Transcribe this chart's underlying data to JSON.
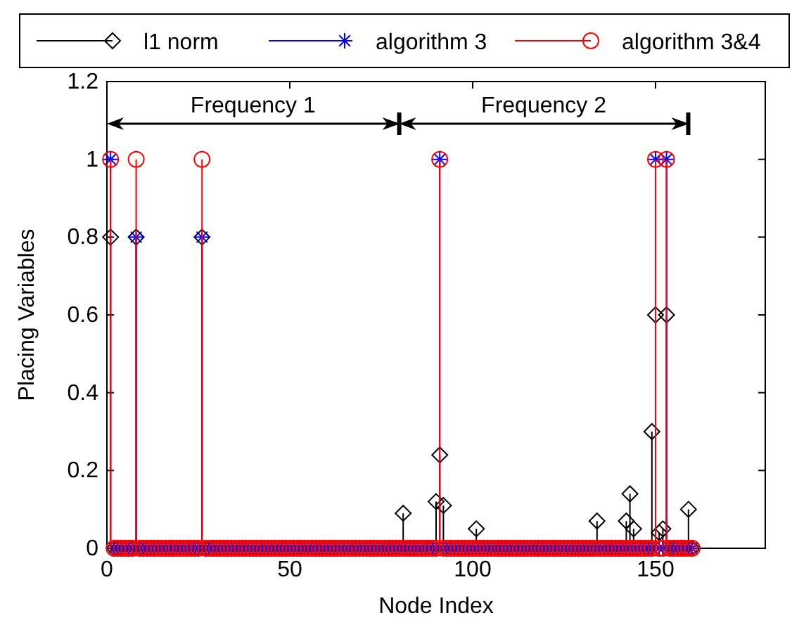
{
  "chart_data": {
    "type": "lollipop",
    "xlabel": "Node Index",
    "ylabel": "Placing Variables",
    "xlim": [
      0,
      180
    ],
    "xticks": [
      0,
      50,
      100,
      150
    ],
    "ylim": [
      0,
      1.2
    ],
    "yticks": [
      0,
      0.2,
      0.4,
      0.6,
      0.8,
      1,
      1.2
    ],
    "legend": "top",
    "annotations": [
      "Frequency 1",
      "Frequency 2"
    ],
    "x": [
      1,
      2,
      3,
      4,
      5,
      6,
      7,
      8,
      9,
      10,
      11,
      12,
      13,
      14,
      15,
      16,
      17,
      18,
      19,
      20,
      21,
      22,
      23,
      24,
      25,
      26,
      27,
      28,
      29,
      30,
      31,
      32,
      33,
      34,
      35,
      36,
      37,
      38,
      39,
      40,
      41,
      42,
      43,
      44,
      45,
      46,
      47,
      48,
      49,
      50,
      51,
      52,
      53,
      54,
      55,
      56,
      57,
      58,
      59,
      60,
      61,
      62,
      63,
      64,
      65,
      66,
      67,
      68,
      69,
      70,
      71,
      72,
      73,
      74,
      75,
      76,
      77,
      78,
      79,
      80,
      81,
      82,
      83,
      84,
      85,
      86,
      87,
      88,
      89,
      90,
      91,
      92,
      93,
      94,
      95,
      96,
      97,
      98,
      99,
      100,
      101,
      102,
      103,
      104,
      105,
      106,
      107,
      108,
      109,
      110,
      111,
      112,
      113,
      114,
      115,
      116,
      117,
      118,
      119,
      120,
      121,
      122,
      123,
      124,
      125,
      126,
      127,
      128,
      129,
      130,
      131,
      132,
      133,
      134,
      135,
      136,
      137,
      138,
      139,
      140,
      141,
      142,
      143,
      144,
      145,
      146,
      147,
      148,
      149,
      150,
      151,
      152,
      153,
      154,
      155,
      156,
      157,
      158,
      159,
      160
    ],
    "series": [
      {
        "name": "l1 norm",
        "color": "#000000",
        "marker": "diamond",
        "values": [
          0.8,
          0,
          0,
          0,
          0,
          0,
          0,
          0.8,
          0,
          0,
          0,
          0,
          0,
          0,
          0,
          0,
          0,
          0,
          0,
          0,
          0,
          0,
          0,
          0,
          0,
          0.8,
          0,
          0,
          0,
          0,
          0,
          0,
          0,
          0,
          0,
          0,
          0,
          0,
          0,
          0,
          0,
          0,
          0,
          0,
          0,
          0,
          0,
          0,
          0,
          0,
          0,
          0,
          0,
          0,
          0,
          0,
          0,
          0,
          0,
          0,
          0,
          0,
          0,
          0,
          0,
          0,
          0,
          0,
          0,
          0,
          0,
          0,
          0,
          0,
          0,
          0,
          0,
          0,
          0,
          0,
          0.09,
          0,
          0,
          0,
          0,
          0,
          0,
          0,
          0,
          0.12,
          0.24,
          0.11,
          0,
          0,
          0,
          0,
          0,
          0,
          0,
          0,
          0.05,
          0,
          0,
          0,
          0,
          0,
          0,
          0,
          0,
          0,
          0,
          0,
          0,
          0,
          0,
          0,
          0,
          0,
          0,
          0,
          0,
          0,
          0,
          0,
          0,
          0,
          0,
          0,
          0,
          0,
          0,
          0,
          0,
          0.07,
          0,
          0,
          0,
          0,
          0,
          0,
          0,
          0.07,
          0.14,
          0.05,
          0,
          0,
          0,
          0,
          0.3,
          0.6,
          0.04,
          0.05,
          0.6,
          0,
          0,
          0,
          0,
          0,
          0.1,
          0
        ]
      },
      {
        "name": "algorithm 3",
        "color": "#0000ff",
        "marker": "cross",
        "values": [
          1,
          0,
          0,
          0,
          0,
          0,
          0,
          0.8,
          0,
          0,
          0,
          0,
          0,
          0,
          0,
          0,
          0,
          0,
          0,
          0,
          0,
          0,
          0,
          0,
          0,
          0.8,
          0,
          0,
          0,
          0,
          0,
          0,
          0,
          0,
          0,
          0,
          0,
          0,
          0,
          0,
          0,
          0,
          0,
          0,
          0,
          0,
          0,
          0,
          0,
          0,
          0,
          0,
          0,
          0,
          0,
          0,
          0,
          0,
          0,
          0,
          0,
          0,
          0,
          0,
          0,
          0,
          0,
          0,
          0,
          0,
          0,
          0,
          0,
          0,
          0,
          0,
          0,
          0,
          0,
          0,
          0,
          0,
          0,
          0,
          0,
          0,
          0,
          0,
          0,
          0,
          1,
          0,
          0,
          0,
          0,
          0,
          0,
          0,
          0,
          0,
          0,
          0,
          0,
          0,
          0,
          0,
          0,
          0,
          0,
          0,
          0,
          0,
          0,
          0,
          0,
          0,
          0,
          0,
          0,
          0,
          0,
          0,
          0,
          0,
          0,
          0,
          0,
          0,
          0,
          0,
          0,
          0,
          0,
          0,
          0,
          0,
          0,
          0,
          0,
          0,
          0,
          0,
          0,
          0,
          0,
          0,
          0,
          0,
          0,
          1,
          0,
          0,
          1,
          0,
          0,
          0,
          0,
          0,
          0,
          0
        ]
      },
      {
        "name": "algorithm 3&4",
        "color": "#ff0000",
        "marker": "circle",
        "values": [
          1,
          0,
          0,
          0,
          0,
          0,
          0,
          1,
          0,
          0,
          0,
          0,
          0,
          0,
          0,
          0,
          0,
          0,
          0,
          0,
          0,
          0,
          0,
          0,
          0,
          1,
          0,
          0,
          0,
          0,
          0,
          0,
          0,
          0,
          0,
          0,
          0,
          0,
          0,
          0,
          0,
          0,
          0,
          0,
          0,
          0,
          0,
          0,
          0,
          0,
          0,
          0,
          0,
          0,
          0,
          0,
          0,
          0,
          0,
          0,
          0,
          0,
          0,
          0,
          0,
          0,
          0,
          0,
          0,
          0,
          0,
          0,
          0,
          0,
          0,
          0,
          0,
          0,
          0,
          0,
          0,
          0,
          0,
          0,
          0,
          0,
          0,
          0,
          0,
          0,
          1,
          0,
          0,
          0,
          0,
          0,
          0,
          0,
          0,
          0,
          0,
          0,
          0,
          0,
          0,
          0,
          0,
          0,
          0,
          0,
          0,
          0,
          0,
          0,
          0,
          0,
          0,
          0,
          0,
          0,
          0,
          0,
          0,
          0,
          0,
          0,
          0,
          0,
          0,
          0,
          0,
          0,
          0,
          0,
          0,
          0,
          0,
          0,
          0,
          0,
          0,
          0,
          0,
          0,
          0,
          0,
          0,
          0,
          0,
          1,
          0,
          0,
          1,
          0,
          0,
          0,
          0,
          0,
          0,
          0
        ]
      }
    ]
  }
}
